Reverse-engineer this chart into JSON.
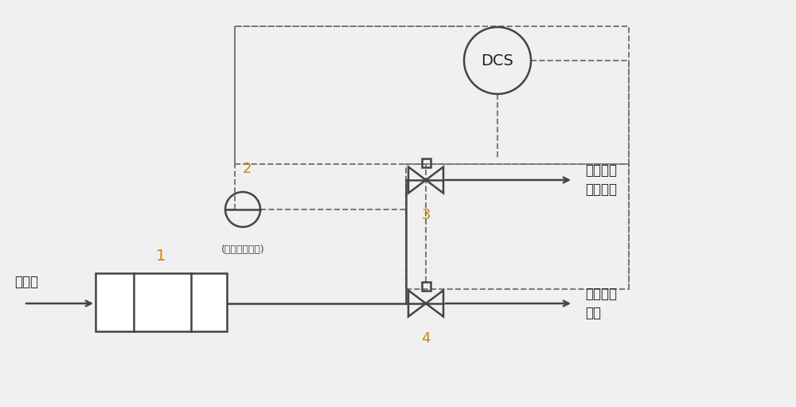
{
  "bg_color": "#f0f0f0",
  "line_color": "#444444",
  "dashed_color": "#777777",
  "number_color": "#cc8800",
  "dcs_label": "DCS",
  "label1": "1",
  "label2": "2",
  "label2_sub": "(无压力差状态)",
  "label3": "3",
  "label4": "4",
  "text_input": "裂解气",
  "text_out_upper1": "裂解气去",
  "text_out_upper2": "急冷水塔",
  "text_out_lower1": "清焦气去",
  "text_out_lower2": "炉膛"
}
